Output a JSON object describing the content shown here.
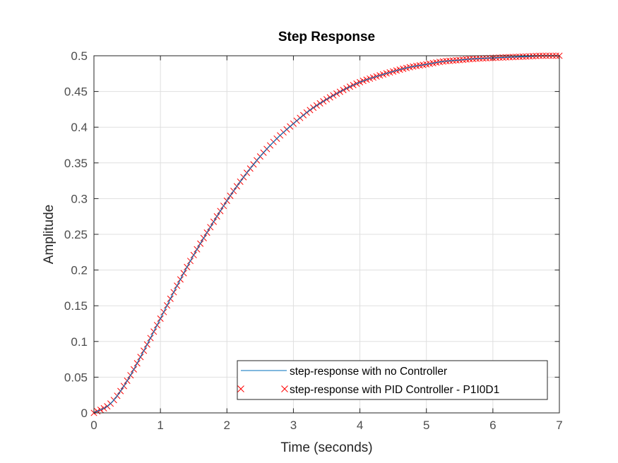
{
  "chart_data": {
    "type": "line",
    "title": "Step Response",
    "xlabel": "Time (seconds)",
    "ylabel": "Amplitude",
    "xlim": [
      0,
      7
    ],
    "ylim": [
      0,
      0.5
    ],
    "xticks": [
      0,
      1,
      2,
      3,
      4,
      5,
      6,
      7
    ],
    "yticks": [
      0,
      0.05,
      0.1,
      0.15,
      0.2,
      0.25,
      0.3,
      0.35,
      0.4,
      0.45,
      0.5
    ],
    "ytick_labels": [
      "0",
      "0.05",
      "0.1",
      "0.15",
      "0.2",
      "0.25",
      "0.3",
      "0.35",
      "0.4",
      "0.45",
      "0.5"
    ],
    "grid": true,
    "legend_position": "bottom-right",
    "steady_state_value": 0.5,
    "series": [
      {
        "name": "step-response with no Controller",
        "color": "#0072BD",
        "style": "line",
        "x": [
          0,
          0.25,
          0.5,
          0.75,
          1,
          1.25,
          1.5,
          1.75,
          2,
          2.25,
          2.5,
          2.75,
          3,
          3.25,
          3.5,
          3.75,
          4,
          4.25,
          4.5,
          4.75,
          5,
          5.25,
          5.5,
          5.75,
          6,
          6.25,
          6.5,
          6.75,
          7
        ],
        "y": [
          0,
          0.013,
          0.045,
          0.087,
          0.132,
          0.178,
          0.221,
          0.26,
          0.297,
          0.33,
          0.359,
          0.384,
          0.405,
          0.424,
          0.439,
          0.452,
          0.463,
          0.471,
          0.478,
          0.484,
          0.488,
          0.492,
          0.494,
          0.496,
          0.497,
          0.498,
          0.499,
          0.5,
          0.5
        ]
      },
      {
        "name": "step-response with PID Controller - P1I0D1",
        "color": "#FF0000",
        "style": "markers",
        "marker": "x",
        "x": [
          0,
          0.25,
          0.5,
          0.75,
          1,
          1.25,
          1.5,
          1.75,
          2,
          2.25,
          2.5,
          2.75,
          3,
          3.25,
          3.5,
          3.75,
          4,
          4.25,
          4.5,
          4.75,
          5,
          5.25,
          5.5,
          5.75,
          6,
          6.25,
          6.5,
          6.75,
          7
        ],
        "y": [
          0,
          0.013,
          0.045,
          0.087,
          0.132,
          0.178,
          0.221,
          0.26,
          0.297,
          0.33,
          0.359,
          0.384,
          0.405,
          0.424,
          0.439,
          0.452,
          0.463,
          0.471,
          0.478,
          0.484,
          0.488,
          0.492,
          0.494,
          0.496,
          0.497,
          0.498,
          0.499,
          0.5,
          0.5
        ]
      }
    ]
  }
}
